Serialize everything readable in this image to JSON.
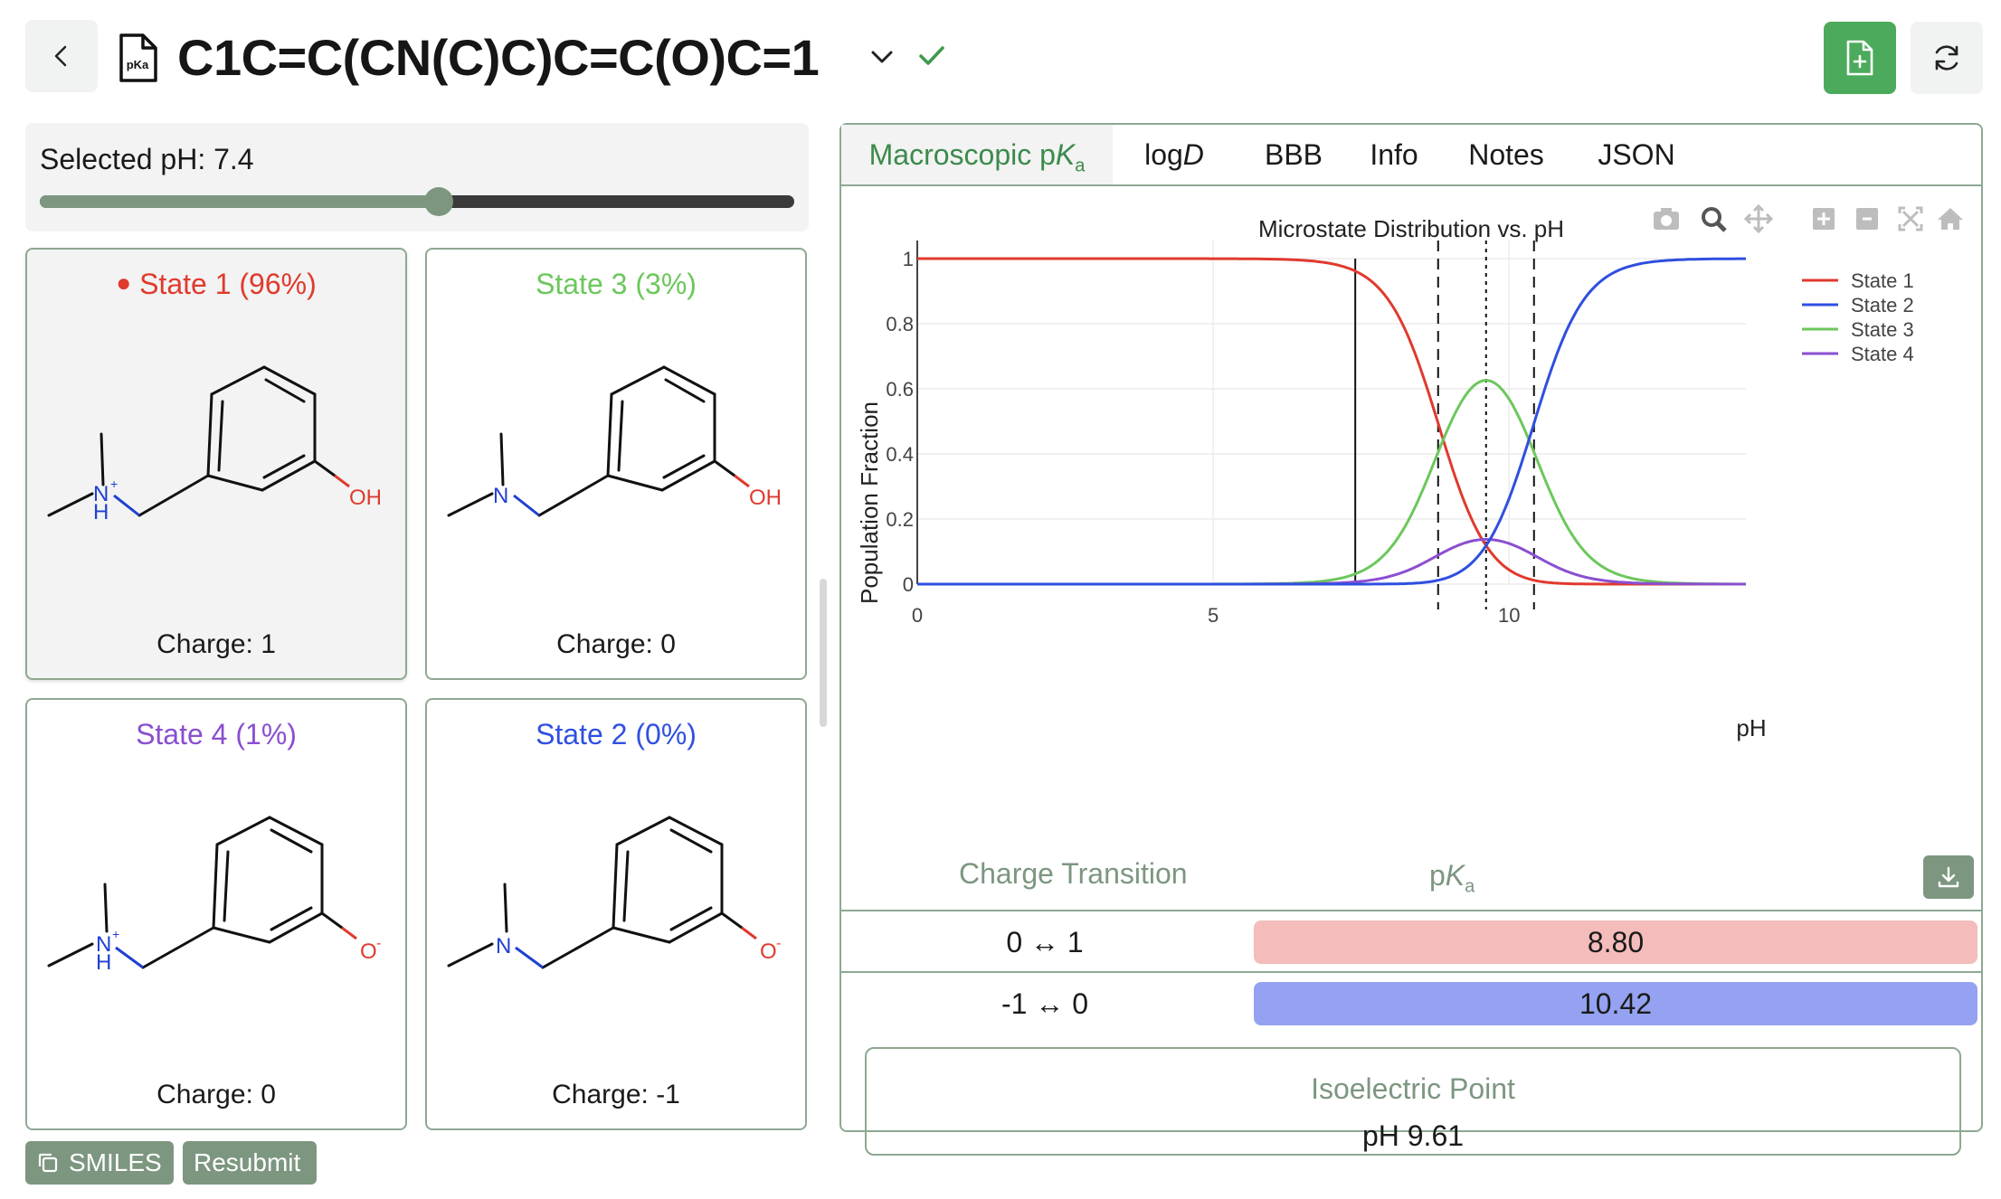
{
  "header": {
    "smiles": "C1C=C(CN(C)C)C=C(O)C=1",
    "file_icon_text": "pKa"
  },
  "ph_panel": {
    "label": "Selected pH: 7.4",
    "ph_value": 7.4,
    "ph_min": 0,
    "ph_max": 14
  },
  "states": [
    {
      "title": "State 1 (96%)",
      "charge": "Charge: 1",
      "color": "#e03a2e",
      "selected": true
    },
    {
      "title": "State 3 (3%)",
      "charge": "Charge: 0",
      "color": "#6cc75c",
      "selected": false
    },
    {
      "title": "State 4 (1%)",
      "charge": "Charge: 0",
      "color": "#8a4fd0",
      "selected": false
    },
    {
      "title": "State 2 (0%)",
      "charge": "Charge: -1",
      "color": "#3050e0",
      "selected": false
    }
  ],
  "molecule_labels": {
    "nh": "N",
    "plus": "+",
    "h": "H",
    "n": "N",
    "oh": "OH",
    "o": "O",
    "minus": "-"
  },
  "buttons": {
    "smiles": "SMILES",
    "resubmit": "Resubmit"
  },
  "tabs": [
    {
      "label": "Macroscopic pKa",
      "active": true
    },
    {
      "label": "logD",
      "active": false
    },
    {
      "label": "BBB",
      "active": false
    },
    {
      "label": "Info",
      "active": false
    },
    {
      "label": "Notes",
      "active": false
    },
    {
      "label": "JSON",
      "active": false
    }
  ],
  "tab_parts": {
    "macro_prefix": "Macroscopic p",
    "macro_k": "K",
    "macro_sub": "a",
    "logd_prefix": "log",
    "logd_d": "D"
  },
  "chart_data": {
    "type": "line",
    "title": "Microstate Distribution vs. pH",
    "xlabel": "pH",
    "ylabel": "Population Fraction",
    "xlim": [
      0,
      14
    ],
    "ylim": [
      0,
      1
    ],
    "xticks": [
      "0",
      "5",
      "10"
    ],
    "yticks": [
      "0",
      "0.2",
      "0.4",
      "0.6",
      "0.8",
      "1"
    ],
    "grid": true,
    "legend_position": "top-right",
    "pka1": 8.8,
    "pka2": 10.42,
    "selected_ph": 7.4,
    "series": [
      {
        "name": "State 1",
        "color": "#e03a2e"
      },
      {
        "name": "State 2",
        "color": "#2f4fe0"
      },
      {
        "name": "State 3",
        "color": "#6cc75c"
      },
      {
        "name": "State 4",
        "color": "#8a4fd0"
      }
    ],
    "vertical_lines": [
      {
        "x": 7.4,
        "style": "solid"
      },
      {
        "x": 8.8,
        "style": "dashed"
      },
      {
        "x": 9.61,
        "style": "dotted"
      },
      {
        "x": 10.42,
        "style": "dashed"
      }
    ]
  },
  "pka_table": {
    "col1": "Charge Transition",
    "col2_prefix": "p",
    "col2_k": "K",
    "col2_sub": "a",
    "rows": [
      {
        "transition": "0 ↔ 1",
        "pka": "8.80",
        "color": "#f4bcbb"
      },
      {
        "transition": "-1 ↔ 0",
        "pka": "10.42",
        "color": "#95a2f1"
      }
    ]
  },
  "isoelectric": {
    "title": "Isoelectric Point",
    "value": "pH 9.61"
  },
  "modebar_icons": [
    "camera-icon",
    "zoom-icon",
    "pan-icon",
    "zoom-in-icon",
    "zoom-out-icon",
    "autoscale-icon",
    "home-icon"
  ]
}
